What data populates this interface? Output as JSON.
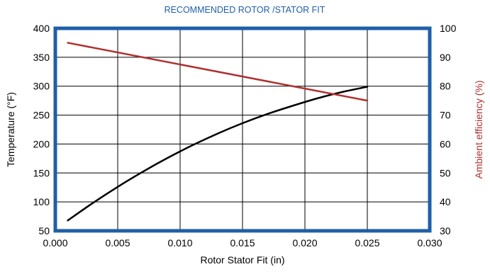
{
  "chart_data": {
    "type": "line",
    "title": "RECOMMENDED ROTOR /STATOR FIT",
    "xlabel": "Rotor Stator Fit (in)",
    "ylabel": "Temperature (°F)",
    "y2label": "Ambient efficiency (%)",
    "xlim": [
      0.0,
      0.03
    ],
    "ylim": [
      50,
      400
    ],
    "y2lim": [
      30,
      100
    ],
    "x_ticks": [
      "0.000",
      "0.005",
      "0.010",
      "0.015",
      "0.020",
      "0.025",
      "0.030"
    ],
    "y_ticks": [
      "50",
      "100",
      "150",
      "200",
      "250",
      "300",
      "350",
      "400"
    ],
    "y2_ticks": [
      "30",
      "40",
      "50",
      "60",
      "70",
      "80",
      "90",
      "100"
    ],
    "grid": true,
    "series": [
      {
        "axis": "left",
        "color": "#000000",
        "x": [
          0.001,
          0.003,
          0.005,
          0.007,
          0.009,
          0.011,
          0.013,
          0.015,
          0.017,
          0.019,
          0.021,
          0.023,
          0.025
        ],
        "values": [
          68,
          98,
          126,
          152,
          176,
          198,
          218,
          236,
          252,
          266,
          279,
          290,
          299
        ]
      },
      {
        "axis": "right",
        "color": "#B03030",
        "x": [
          0.001,
          0.025
        ],
        "values": [
          95,
          75
        ]
      }
    ],
    "colors": {
      "title": "#1F5FA8",
      "frame": "#1F5FA8",
      "y2label": "#B03030",
      "grid": "#000000",
      "text": "#000000"
    }
  }
}
